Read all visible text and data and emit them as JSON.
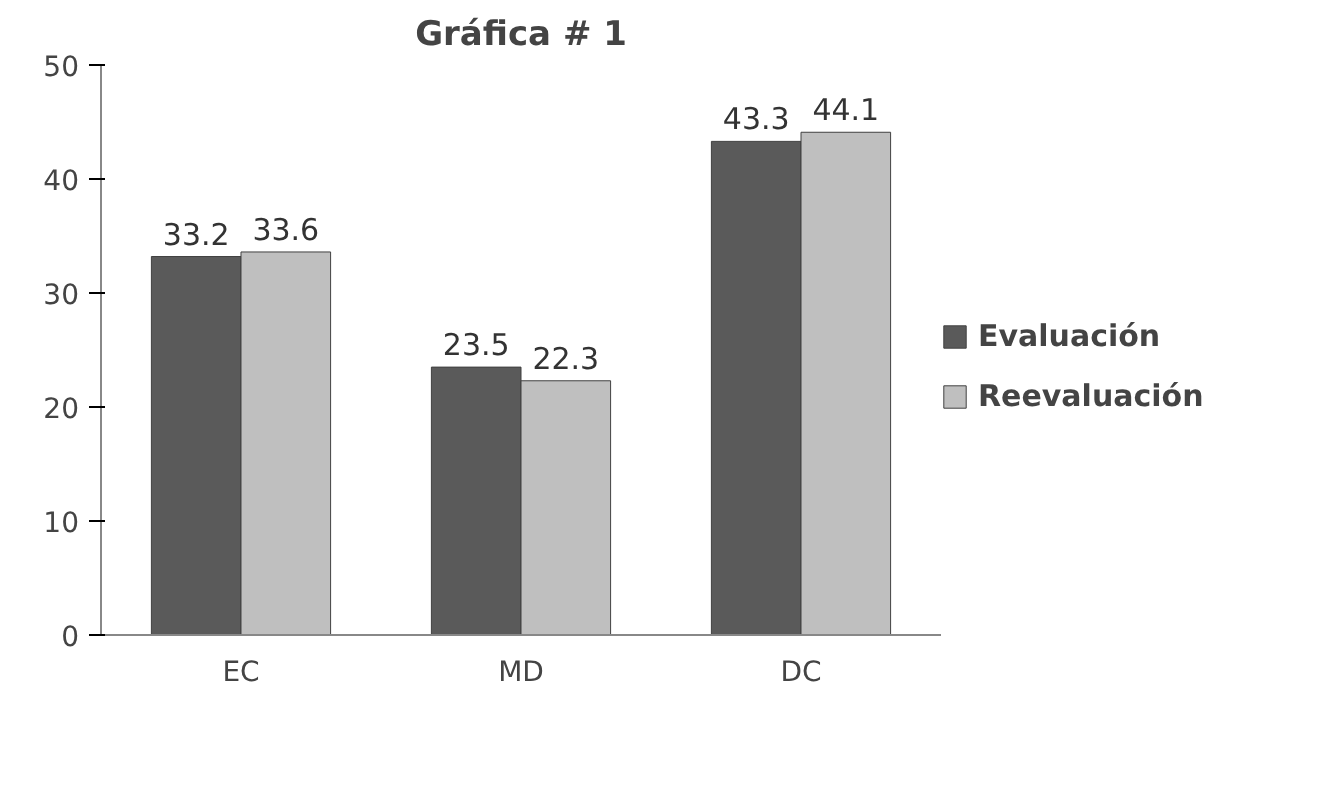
{
  "chart_data": {
    "type": "bar",
    "title": "Gráfica # 1",
    "categories": [
      "EC",
      "MD",
      "DC"
    ],
    "series": [
      {
        "name": "Evaluación",
        "color": "#5a5a5a",
        "values": [
          33.2,
          23.5,
          43.3
        ]
      },
      {
        "name": "Reevaluación",
        "color": "#bfbfbf",
        "values": [
          33.6,
          22.3,
          44.1
        ]
      }
    ],
    "ylim": [
      0,
      50
    ],
    "yticks": [
      0,
      10,
      20,
      30,
      40,
      50
    ],
    "grid": false,
    "legend": "right",
    "data_labels": true
  }
}
